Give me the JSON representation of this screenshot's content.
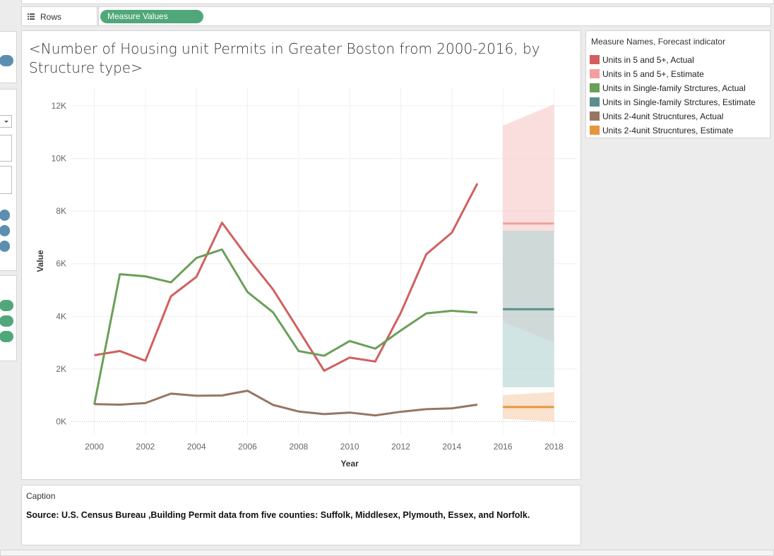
{
  "rows_shelf": {
    "label": "Rows",
    "pill": "Measure Values"
  },
  "chart": {
    "title": "<Number of Housing unit Permits in Greater Boston from 2000-2016, by Structure type>"
  },
  "legend": {
    "title": "Measure Names, Forecast indicator",
    "items": [
      {
        "label": "Units in 5 and 5+, Actual",
        "color": "#d1605e"
      },
      {
        "label": "Units in 5 and 5+, Estimate",
        "color": "#f2a09e"
      },
      {
        "label": "Units in Single-family Strctures, Actual",
        "color": "#6a9f58"
      },
      {
        "label": "Units in Single-family Strctures, Estimate",
        "color": "#5a8f8e"
      },
      {
        "label": "Units 2-4unit Strucntures, Actual",
        "color": "#967662"
      },
      {
        "label": "Units 2-4unit Strucntures, Estimate",
        "color": "#e8953f"
      }
    ]
  },
  "caption": {
    "title": "Caption",
    "text": "Source: U.S. Census Bureau ,Building Permit data from five counties: Suffolk, Middlesex, Plymouth, Essex, and Norfolk."
  },
  "chart_data": {
    "type": "line",
    "title": "<Number of Housing unit Permits in Greater Boston from 2000-2016, by Structure type>",
    "xlabel": "Year",
    "ylabel": "Value",
    "xlim": [
      1999.1,
      2018.9
    ],
    "ylim": [
      -500,
      12700
    ],
    "x_ticks": [
      2000,
      2002,
      2004,
      2006,
      2008,
      2010,
      2012,
      2014,
      2016,
      2018
    ],
    "y_ticks": [
      {
        "value": 0,
        "label": "0K"
      },
      {
        "value": 2000,
        "label": "2K"
      },
      {
        "value": 4000,
        "label": "4K"
      },
      {
        "value": 6000,
        "label": "6K"
      },
      {
        "value": 8000,
        "label": "8K"
      },
      {
        "value": 10000,
        "label": "10K"
      },
      {
        "value": 12000,
        "label": "12K"
      }
    ],
    "grid": true,
    "legend": "right",
    "x": [
      2000,
      2001,
      2002,
      2003,
      2004,
      2005,
      2006,
      2007,
      2008,
      2009,
      2010,
      2011,
      2012,
      2013,
      2014,
      2015
    ],
    "series": [
      {
        "name": "Units in 5 and 5+, Actual",
        "color": "#d1605e",
        "values": [
          2520,
          2680,
          2310,
          4760,
          5500,
          7560,
          6240,
          5020,
          3480,
          1930,
          2430,
          2280,
          4130,
          6360,
          7180,
          9050
        ]
      },
      {
        "name": "Units in Single-family Strctures, Actual",
        "color": "#6a9f58",
        "values": [
          650,
          5600,
          5520,
          5290,
          6220,
          6540,
          4920,
          4150,
          2680,
          2500,
          3060,
          2770,
          3460,
          4110,
          4210,
          4140
        ]
      },
      {
        "name": "Units 2-4unit Strucntures, Actual",
        "color": "#967662",
        "values": [
          660,
          640,
          700,
          1060,
          980,
          990,
          1170,
          630,
          380,
          280,
          340,
          230,
          370,
          470,
          500,
          640
        ]
      }
    ],
    "forecasts": [
      {
        "name": "Units in 5 and 5+, Estimate",
        "color": "#f2a09e",
        "band_color": "#f8cccb",
        "x": [
          2016,
          2018
        ],
        "value": 7530,
        "lower": [
          3800,
          3000
        ],
        "upper": [
          11250,
          12060
        ]
      },
      {
        "name": "Units in Single-family Strctures, Estimate",
        "color": "#5a8f8e",
        "band_color": "#b9d6d6",
        "x": [
          2016,
          2018
        ],
        "value": 4270,
        "lower": [
          1300,
          1300
        ],
        "upper": [
          7250,
          7250
        ]
      },
      {
        "name": "Units 2-4unit Strucntures, Estimate",
        "color": "#e8953f",
        "band_color": "#f6d2b4",
        "x": [
          2016,
          2018
        ],
        "value": 550,
        "lower": [
          100,
          0
        ],
        "upper": [
          1000,
          1120
        ]
      }
    ]
  }
}
